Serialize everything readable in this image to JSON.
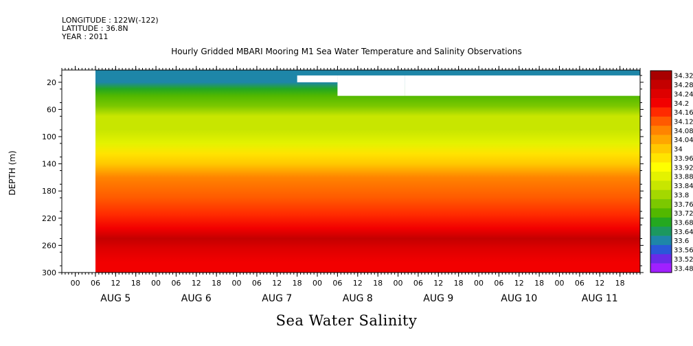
{
  "header": {
    "longitude": "LONGITUDE : 122W(-122)",
    "latitude": "LATITUDE : 36.8N",
    "year": "YEAR : 2011"
  },
  "chart_data": {
    "type": "heatmap",
    "title": "Hourly Gridded MBARI Mooring M1 Sea Water Temperature and Salinity Observations",
    "xlabel": "Sea Water Salinity",
    "ylabel": "DEPTH (m)",
    "x_range": [
      "2011-08-04T20:00",
      "2011-08-12T00:00"
    ],
    "y_range": [
      2,
      300
    ],
    "y_inverted": true,
    "y_ticks": [
      20,
      60,
      100,
      140,
      180,
      220,
      260,
      300
    ],
    "x_hour_ticks": [
      "00",
      "06",
      "12",
      "18",
      "00",
      "06",
      "12",
      "18",
      "00",
      "06",
      "12",
      "18",
      "00",
      "06",
      "12",
      "18",
      "00",
      "06",
      "12",
      "18",
      "00",
      "06",
      "12",
      "18",
      "00",
      "06",
      "12",
      "18"
    ],
    "x_day_labels": [
      "AUG 5",
      "AUG 6",
      "AUG 7",
      "AUG 8",
      "AUG 9",
      "AUG 10",
      "AUG 11"
    ],
    "colorbar": {
      "labels": [
        "34.32",
        "34.28",
        "34.24",
        "34.2",
        "34.16",
        "34.12",
        "34.08",
        "34.04",
        "34",
        "33.96",
        "33.92",
        "33.88",
        "33.84",
        "33.8",
        "33.76",
        "33.72",
        "33.68",
        "33.64",
        "33.6",
        "33.56",
        "33.52",
        "33.48"
      ],
      "colors": [
        "#a80000",
        "#c40000",
        "#de0000",
        "#f20000",
        "#ff2a00",
        "#ff5a00",
        "#ff8400",
        "#ffa600",
        "#ffc800",
        "#ffe400",
        "#ffff00",
        "#e4f200",
        "#c8e600",
        "#a4d800",
        "#7cc800",
        "#52b800",
        "#24a820",
        "#1c9860",
        "#1e86a8",
        "#2a58d8",
        "#6a2ae8",
        "#a020ff"
      ]
    },
    "data_start_x": "2011-08-05T06:00",
    "missing_regions": [
      {
        "x_from": "2011-08-04T20:00",
        "x_to": "2011-08-05T06:00",
        "depth_from": 2,
        "depth_to": 300
      },
      {
        "x_from": "2011-08-07T18:00",
        "x_to": "2011-08-08T06:00",
        "depth_from": 10,
        "depth_to": 20
      },
      {
        "x_from": "2011-08-08T06:00",
        "x_to": "2011-08-09T02:00",
        "depth_from": 10,
        "depth_to": 40
      },
      {
        "x_from": "2011-08-09T02:00",
        "x_to": "2011-08-12T00:00",
        "depth_from": 10,
        "depth_to": 40
      }
    ],
    "depth_profile": [
      {
        "depth": 10,
        "value": 33.6
      },
      {
        "depth": 20,
        "value": 33.62
      },
      {
        "depth": 30,
        "value": 33.68
      },
      {
        "depth": 40,
        "value": 33.74
      },
      {
        "depth": 55,
        "value": 33.78
      },
      {
        "depth": 70,
        "value": 33.84
      },
      {
        "depth": 90,
        "value": 33.86
      },
      {
        "depth": 110,
        "value": 33.88
      },
      {
        "depth": 125,
        "value": 33.94
      },
      {
        "depth": 140,
        "value": 34.0
      },
      {
        "depth": 160,
        "value": 34.06
      },
      {
        "depth": 190,
        "value": 34.1
      },
      {
        "depth": 215,
        "value": 34.14
      },
      {
        "depth": 235,
        "value": 34.2
      },
      {
        "depth": 250,
        "value": 34.26
      },
      {
        "depth": 265,
        "value": 34.24
      },
      {
        "depth": 285,
        "value": 34.2
      },
      {
        "depth": 300,
        "value": 34.18
      }
    ],
    "grid": false,
    "legend_position": "right"
  }
}
